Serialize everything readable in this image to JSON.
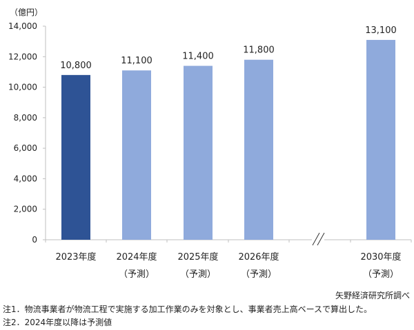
{
  "chart_data": {
    "type": "bar",
    "unit_label": "（億円）",
    "categories": [
      {
        "label": "2023年度",
        "sub": ""
      },
      {
        "label": "2024年度",
        "sub": "（予測）"
      },
      {
        "label": "2025年度",
        "sub": "（予測）"
      },
      {
        "label": "2026年度",
        "sub": "（予測）"
      },
      {
        "label": "2030年度",
        "sub": "（予測）"
      }
    ],
    "values": [
      10800,
      11100,
      11400,
      11800,
      13100
    ],
    "value_labels": [
      "10,800",
      "11,100",
      "11,400",
      "11,800",
      "13,100"
    ],
    "ylim": [
      0,
      14000
    ],
    "yticks": [
      0,
      2000,
      4000,
      6000,
      8000,
      10000,
      12000,
      14000
    ],
    "ytick_labels": [
      "0",
      "2,000",
      "4,000",
      "6,000",
      "8,000",
      "10,000",
      "12,000",
      "14,000"
    ],
    "grid": false,
    "axis_break": "between 2026年度 and 2030年度",
    "colors": {
      "actual": "#2e5395",
      "forecast": "#8faadc",
      "axis": "#bfbfbf"
    }
  },
  "source": "矢野経済研究所調べ",
  "notes": [
    "注1．物流事業者が物流工程で実施する加工作業のみを対象とし、事業者売上高ベースで算出した。",
    "注2．2024年度以降は予測値"
  ]
}
